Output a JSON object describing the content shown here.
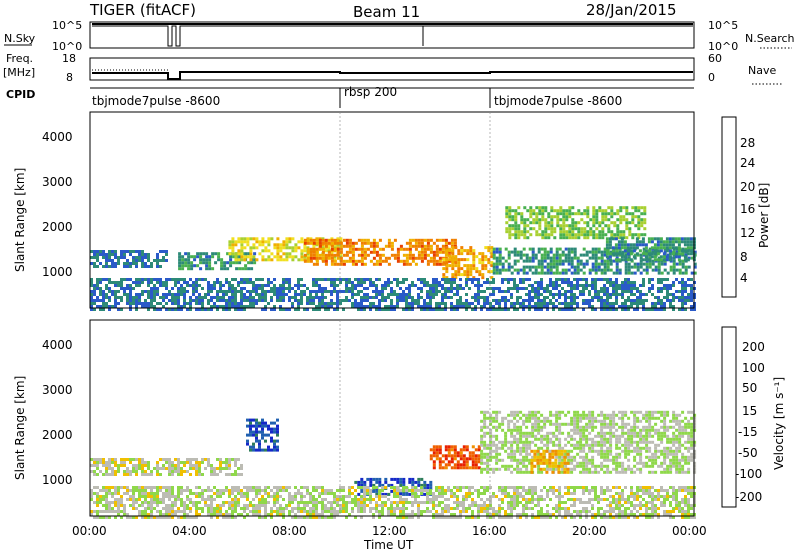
{
  "header": {
    "radar": "TIGER (fitACF)",
    "beam": "Beam 11",
    "date": "28/Jan/2015"
  },
  "top_panels": {
    "nsky_label": "N.Sky",
    "nsky_ticks": [
      "10^5",
      "10^0"
    ],
    "nsearch_label": "N.Search",
    "nsearch_ticks": [
      "10^5",
      "10^0"
    ],
    "freq_label_line1": "Freq.",
    "freq_label_line2": "[MHz]",
    "freq_ticks": [
      "18",
      "8"
    ],
    "nave_label": "Nave",
    "nave_ticks": [
      "60",
      "0"
    ],
    "cpid_label": "CPID",
    "cpid_segments": [
      {
        "name": "tbjmode7pulse -8600"
      },
      {
        "name": "rbsp 200"
      },
      {
        "name": "tbjmode7pulse -8600"
      }
    ]
  },
  "axes": {
    "ylabel": "Slant Range [km]",
    "yticks": [
      "1000",
      "2000",
      "3000",
      "4000"
    ],
    "xlabel": "Time UT",
    "xticks": [
      "00:00",
      "04:00",
      "08:00",
      "12:00",
      "16:00",
      "20:00",
      "00:00"
    ]
  },
  "colorbars": {
    "power": {
      "label": "Power [dB]",
      "ticks": [
        "4",
        "8",
        "12",
        "16",
        "20",
        "24",
        "28"
      ],
      "colors": [
        "#0a1ee6",
        "#2a5ac8",
        "#2d8a78",
        "#48b050",
        "#a8d030",
        "#f0e020",
        "#f0b000",
        "#f08000",
        "#e84000",
        "#d80000"
      ]
    },
    "velocity": {
      "label": "Velocity [m s⁻¹]",
      "ticks": [
        "200",
        "100",
        "50",
        "15",
        "-15",
        "-50",
        "-100",
        "-200"
      ],
      "colors": [
        "#1428c8",
        "#2060b0",
        "#2e7d5a",
        "#38a840",
        "#8fd84a",
        "#bcbcb4",
        "#f0c000",
        "#f09000",
        "#f06000",
        "#e82000"
      ]
    }
  },
  "chart_data": [
    {
      "type": "heatmap",
      "title": "Power",
      "xlabel": "Time UT",
      "ylabel": "Slant Range [km]",
      "xlim": [
        "00:00",
        "24:00"
      ],
      "ylim": [
        180,
        4600
      ],
      "colorbar": "Power [dB]",
      "colorbar_range": [
        0,
        30
      ],
      "features": [
        {
          "t0": 0.0,
          "t1": 3.0,
          "r0": 1150,
          "r1": 1550,
          "value": 6
        },
        {
          "t0": 3.5,
          "t1": 6.5,
          "r0": 1100,
          "r1": 1500,
          "value": 8
        },
        {
          "t0": 5.5,
          "t1": 10.0,
          "r0": 1300,
          "r1": 1800,
          "value": 16
        },
        {
          "t0": 8.5,
          "t1": 14.5,
          "r0": 1200,
          "r1": 1800,
          "value": 22
        },
        {
          "t0": 14.0,
          "t1": 16.0,
          "r0": 900,
          "r1": 1600,
          "value": 20
        },
        {
          "t0": 16.0,
          "t1": 24.0,
          "r0": 1000,
          "r1": 1600,
          "value": 8
        },
        {
          "t0": 16.5,
          "t1": 22.0,
          "r0": 1800,
          "r1": 2500,
          "value": 12
        },
        {
          "t0": 20.5,
          "t1": 24.0,
          "r0": 1300,
          "r1": 1800,
          "value": 8
        },
        {
          "t0": 0.0,
          "t1": 24.0,
          "r0": 180,
          "r1": 900,
          "value": 6
        }
      ]
    },
    {
      "type": "heatmap",
      "title": "Velocity",
      "xlabel": "Time UT",
      "ylabel": "Slant Range [km]",
      "xlim": [
        "00:00",
        "24:00"
      ],
      "ylim": [
        180,
        4600
      ],
      "colorbar": "Velocity [m s⁻¹]",
      "colorbar_range": [
        -200,
        200
      ],
      "features": [
        {
          "t0": 0.0,
          "t1": 6.0,
          "r0": 1150,
          "r1": 1550,
          "value": -20
        },
        {
          "t0": 6.2,
          "t1": 7.5,
          "r0": 1700,
          "r1": 2400,
          "value": 150
        },
        {
          "t0": 10.5,
          "t1": 13.5,
          "r0": 700,
          "r1": 1100,
          "value": 150
        },
        {
          "t0": 13.5,
          "t1": 15.5,
          "r0": 1300,
          "r1": 1800,
          "value": -150
        },
        {
          "t0": 15.5,
          "t1": 24.0,
          "r0": 1200,
          "r1": 2600,
          "value": 0
        },
        {
          "t0": 17.5,
          "t1": 19.0,
          "r0": 1200,
          "r1": 1700,
          "value": -80
        },
        {
          "t0": 0.0,
          "t1": 24.0,
          "r0": 180,
          "r1": 900,
          "value": -10
        }
      ]
    }
  ]
}
